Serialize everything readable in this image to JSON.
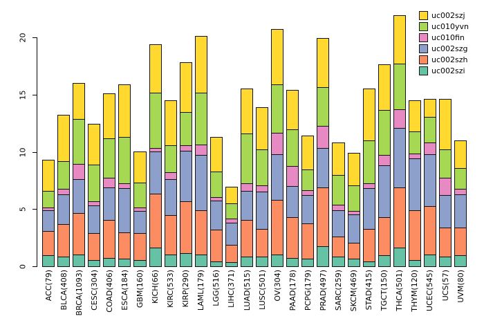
{
  "chart_data": {
    "type": "bar",
    "stacked": true,
    "title": "",
    "xlabel": "",
    "ylabel": "",
    "ylim": [
      0,
      22.5
    ],
    "yticks": [
      0,
      5,
      10,
      15,
      20
    ],
    "grid": false,
    "legend_position": "top-right",
    "legend_order": [
      "uc002szj",
      "uc010yvn",
      "uc010fin",
      "uc002szg",
      "uc002szh",
      "uc002szi"
    ],
    "categories": [
      "ACC(79)",
      "BLCA(408)",
      "BRCA(1093)",
      "CESC(304)",
      "COAD(406)",
      "ESCA(184)",
      "GBM(160)",
      "KICH(66)",
      "KIRC(533)",
      "KIRP(290)",
      "LAML(179)",
      "LGG(516)",
      "LIHC(371)",
      "LUAD(515)",
      "LUSC(501)",
      "OV(304)",
      "PAAD(178)",
      "PCPG(179)",
      "PRAD(497)",
      "SARC(259)",
      "SKCM(469)",
      "STAD(415)",
      "TGCT(150)",
      "THCA(501)",
      "THYM(120)",
      "UCEC(545)",
      "UCS(57)",
      "UVM(80)"
    ],
    "series": [
      {
        "name": "uc002szi",
        "color": "#66C2A5",
        "values": [
          1.0,
          0.9,
          1.1,
          0.6,
          0.8,
          0.7,
          0.6,
          1.7,
          1.1,
          1.2,
          1.1,
          0.5,
          0.4,
          0.9,
          0.9,
          1.1,
          0.8,
          0.7,
          1.8,
          0.9,
          0.7,
          0.5,
          1.0,
          1.7,
          0.6,
          1.1,
          0.9,
          1.0
        ]
      },
      {
        "name": "uc002szh",
        "color": "#FC8D62",
        "values": [
          2.2,
          2.9,
          3.7,
          2.4,
          3.4,
          2.4,
          2.4,
          4.8,
          3.5,
          4.6,
          3.9,
          2.8,
          1.6,
          3.3,
          2.5,
          4.8,
          3.6,
          3.2,
          5.2,
          1.8,
          1.5,
          2.9,
          3.4,
          5.3,
          4.4,
          4.3,
          2.6,
          2.5
        ]
      },
      {
        "name": "uc002szg",
        "color": "#8DA0CB",
        "values": [
          1.9,
          2.7,
          3.0,
          2.5,
          2.9,
          3.9,
          2.0,
          3.7,
          3.2,
          4.5,
          4.9,
          2.6,
          2.0,
          2.6,
          3.3,
          4.1,
          2.8,
          2.5,
          3.5,
          2.4,
          2.5,
          3.6,
          4.6,
          5.3,
          4.6,
          4.6,
          2.9,
          3.0
        ]
      },
      {
        "name": "uc010fin",
        "color": "#E78AC3",
        "values": [
          0.3,
          0.5,
          1.4,
          0.4,
          0.9,
          0.5,
          0.4,
          0.4,
          0.7,
          0.5,
          1.0,
          0.4,
          0.4,
          0.7,
          0.6,
          1.9,
          1.8,
          0.5,
          2.0,
          0.5,
          0.4,
          0.5,
          1.0,
          1.7,
          0.5,
          1.1,
          1.6,
          0.5
        ]
      },
      {
        "name": "uc010yvn",
        "color": "#A6D854",
        "values": [
          1.5,
          2.5,
          4.0,
          3.3,
          3.5,
          4.1,
          2.2,
          4.9,
          2.4,
          3.0,
          4.6,
          2.3,
          1.4,
          4.4,
          3.2,
          4.3,
          3.3,
          1.9,
          3.5,
          2.7,
          2.3,
          3.8,
          4.0,
          4.0,
          2.0,
          2.3,
          2.5,
          1.9
        ]
      },
      {
        "name": "uc002szj",
        "color": "#FFD92F",
        "values": [
          2.8,
          4.1,
          3.2,
          3.6,
          4.0,
          4.7,
          2.8,
          4.3,
          4.0,
          4.4,
          5.0,
          3.1,
          1.5,
          4.0,
          3.8,
          4.9,
          3.5,
          3.0,
          4.3,
          2.9,
          2.9,
          4.6,
          4.0,
          4.3,
          2.8,
          1.6,
          4.5,
          2.5
        ]
      }
    ]
  }
}
